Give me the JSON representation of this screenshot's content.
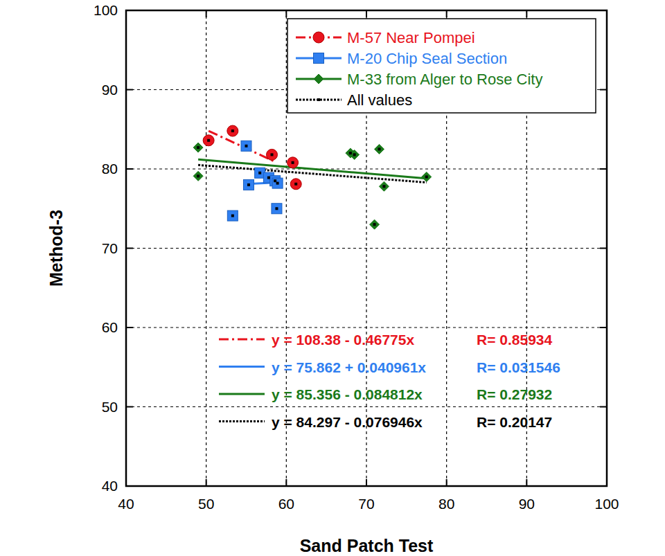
{
  "chart_data": {
    "type": "scatter",
    "xlabel": "Sand Patch Test",
    "ylabel": "Method-3",
    "xlim": [
      40,
      100
    ],
    "ylim": [
      40,
      100
    ],
    "xticks": [
      40,
      50,
      60,
      70,
      80,
      90,
      100
    ],
    "yticks": [
      40,
      50,
      60,
      70,
      80,
      90,
      100
    ],
    "grid": true,
    "legend": "upper right",
    "series": [
      {
        "name": "M-57 Near Pompei",
        "color": "#e8141e",
        "marker": "circle",
        "line_style": "dashdot",
        "x": [
          50.3,
          53.3,
          58.2,
          60.8,
          61.2
        ],
        "values": [
          83.6,
          84.8,
          81.8,
          80.8,
          78.1
        ],
        "fit_x": [
          50.3,
          58.6
        ],
        "fit_values": [
          84.8,
          80.9
        ],
        "equation": "y = 108.38 - 0.46775x",
        "r_label": "R= 0.85934"
      },
      {
        "name": "M-20 Chip Seal Section",
        "color": "#2f7ff0",
        "marker": "square",
        "line_style": "solid",
        "x": [
          53.3,
          55.0,
          55.3,
          56.7,
          57.8,
          58.6,
          58.9,
          58.8
        ],
        "values": [
          74.1,
          82.9,
          78.0,
          79.5,
          78.9,
          78.5,
          78.2,
          75.0
        ],
        "fit_x": [
          55.0,
          59.0
        ],
        "fit_values": [
          78.1,
          78.3
        ],
        "equation": "y = 75.862 + 0.040961x",
        "r_label": "R= 0.031546"
      },
      {
        "name": "M-33 from Alger to Rose City",
        "color": "#1a7a1a",
        "marker": "diamond",
        "line_style": "solid",
        "x": [
          49.0,
          49.0,
          68.0,
          68.5,
          71.0,
          71.6,
          72.2,
          77.5
        ],
        "values": [
          82.7,
          79.1,
          82.0,
          81.8,
          73.0,
          82.5,
          77.8,
          79.0
        ],
        "fit_x": [
          49.0,
          77.5
        ],
        "fit_values": [
          81.2,
          78.8
        ],
        "equation": "y = 85.356 - 0.084812x",
        "r_label": "R= 0.27932"
      },
      {
        "name": "All values",
        "color": "#000000",
        "marker": "dot",
        "line_style": "dotted",
        "x": [
          50.3,
          53.3,
          58.2,
          60.8,
          61.2,
          53.3,
          55.0,
          55.3,
          56.7,
          57.8,
          58.6,
          58.9,
          58.8,
          49.0,
          49.0,
          68.0,
          68.5,
          71.0,
          71.6,
          72.2,
          77.5
        ],
        "values": [
          83.6,
          84.8,
          81.8,
          80.8,
          78.1,
          74.1,
          82.9,
          78.0,
          79.5,
          78.9,
          78.5,
          78.2,
          75.0,
          82.7,
          79.1,
          82.0,
          81.8,
          73.0,
          82.5,
          77.8,
          79.0
        ],
        "fit_x": [
          49.0,
          77.5
        ],
        "fit_values": [
          80.5,
          78.3
        ],
        "equation": "y = 84.297 - 0.076946x",
        "r_label": "R= 0.20147"
      }
    ]
  }
}
